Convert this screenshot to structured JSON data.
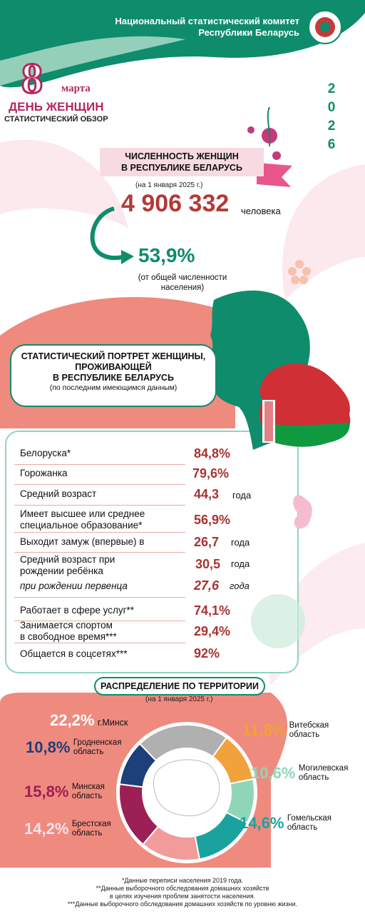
{
  "header": {
    "org_line1": "Национальный статистический комитет",
    "org_line2": "Республики Беларусь"
  },
  "title": {
    "number": "8",
    "month": "марта",
    "holiday": "ДЕНЬ ЖЕНЩИН",
    "subtitle": "СТАТИСТИЧЕСКИЙ ОБЗОР",
    "year_digits": [
      "2",
      "0",
      "2",
      "6"
    ]
  },
  "women_count": {
    "heading_line1": "ЧИСЛЕННОСТЬ ЖЕНЩИН",
    "heading_line2": "В РЕСПУБЛИКЕ БЕЛАРУСЬ",
    "date_note": "(на 1 января 2025 г.)",
    "value": "4 906 332",
    "unit": "человека",
    "share": "53,9%",
    "share_note_line1": "(от общей численности",
    "share_note_line2": "населения)"
  },
  "portrait": {
    "heading_line1": "СТАТИСТИЧЕСКИЙ ПОРТРЕТ ЖЕНЩИНЫ,",
    "heading_line2": "ПРОЖИВАЮЩЕЙ",
    "heading_line3": "В РЕСПУБЛИКЕ БЕЛАРУСЬ",
    "note": "(по последним имеющимся данным)",
    "rows": [
      {
        "label1": "Белоруска*",
        "label2": "",
        "value": "84,8%",
        "unit": ""
      },
      {
        "label1": "Горожанка",
        "label2": "",
        "value": "79,6%",
        "unit": ""
      },
      {
        "label1": "Средний возраст",
        "label2": "",
        "value": "44,3",
        "unit": "года"
      },
      {
        "label1": "Имеет высшее или среднее",
        "label2": "специальное образование*",
        "value": "56,9%",
        "unit": ""
      },
      {
        "label1": "Выходит замуж (впервые) в",
        "label2": "",
        "value": "26,7",
        "unit": "года"
      },
      {
        "label1": "Средний возраст при",
        "label2": "рождении ребёнка",
        "value": "30,5",
        "unit": "года"
      },
      {
        "label1": "при рождении первенца",
        "label2": "",
        "value": "27,6",
        "unit": "года"
      },
      {
        "label1": "Работает в сфере услуг**",
        "label2": "",
        "value": "74,1%",
        "unit": ""
      },
      {
        "label1": "Занимается спортом",
        "label2": "в свободное время***",
        "value": "29,4%",
        "unit": ""
      },
      {
        "label1": "Общается в соцсетях***",
        "label2": "",
        "value": "92%",
        "unit": ""
      }
    ]
  },
  "distribution": {
    "heading": "РАСПРЕДЕЛЕНИЕ ПО ТЕРРИТОРИИ",
    "date_note": "(на 1 января 2025 г.)",
    "regions": [
      {
        "pct": "22,2%",
        "name1": "г.Минск",
        "name2": "",
        "share": 22.2,
        "color": "#b0b0b0"
      },
      {
        "pct": "11,8%",
        "name1": "Витебская",
        "name2": "область",
        "share": 11.8,
        "color": "#f2a23c"
      },
      {
        "pct": "10,6%",
        "name1": "Могилевская",
        "name2": "область",
        "share": 10.6,
        "color": "#8fd6b8"
      },
      {
        "pct": "14,6%",
        "name1": "Гомельская",
        "name2": "область",
        "share": 14.6,
        "color": "#1aa39e"
      },
      {
        "pct": "14,2%",
        "name1": "Брестская",
        "name2": "область",
        "share": 14.2,
        "color": "#f29b9b"
      },
      {
        "pct": "15,8%",
        "name1": "Минская",
        "name2": "область",
        "share": 15.8,
        "color": "#9c1f55"
      },
      {
        "pct": "10,8%",
        "name1": "Гродненская",
        "name2": "область",
        "share": 10.8,
        "color": "#1d3f7a"
      }
    ]
  },
  "footnotes": {
    "f1": "*Данные переписи населения 2019 года.",
    "f2a": "**Данные выборочного обследования домашних хозяйств",
    "f2b": "в целях изучения проблем занятости населения.",
    "f3": "***Данные выборочного обследования домашних хозяйств по уровню жизни."
  }
}
